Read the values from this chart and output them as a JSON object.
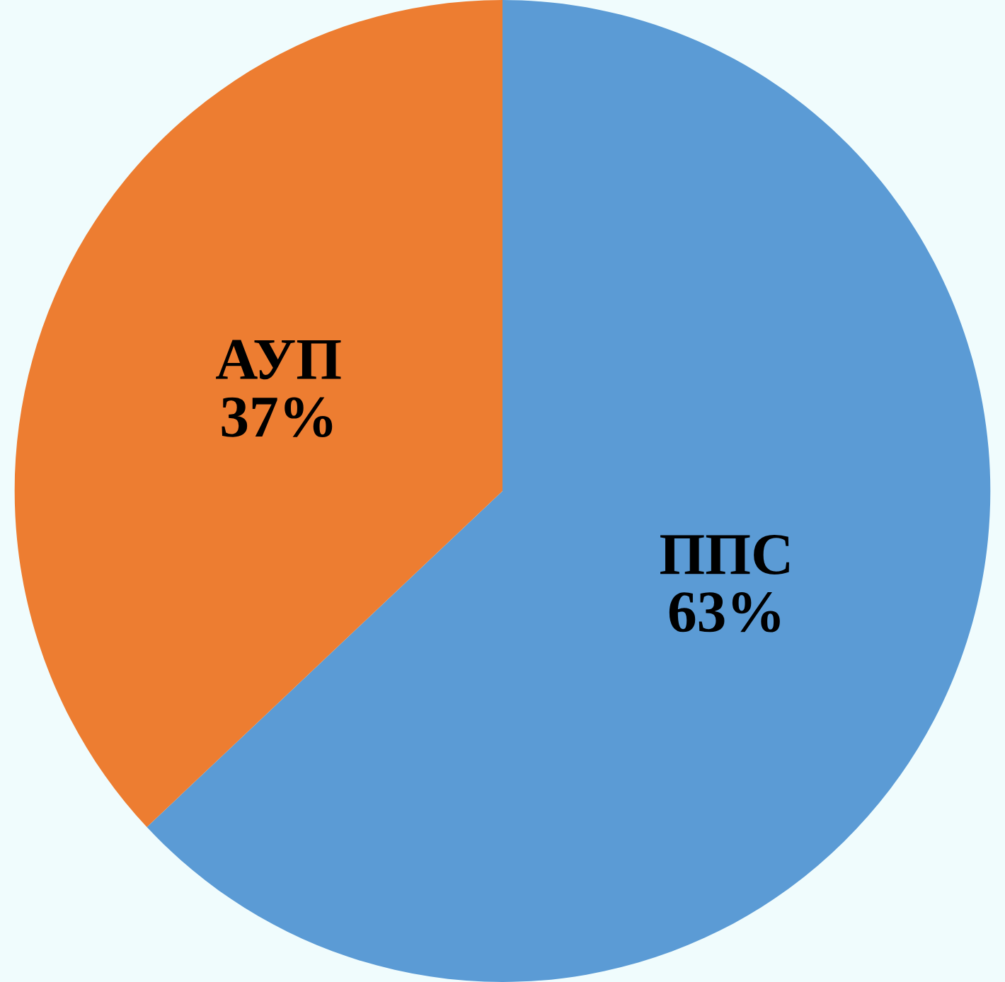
{
  "chart_data": {
    "type": "pie",
    "categories": [
      "ППС",
      "АУП"
    ],
    "values": [
      63,
      37
    ],
    "value_labels": [
      "63%",
      "37%"
    ],
    "colors": [
      "#5b9bd5",
      "#ed7d31"
    ]
  }
}
